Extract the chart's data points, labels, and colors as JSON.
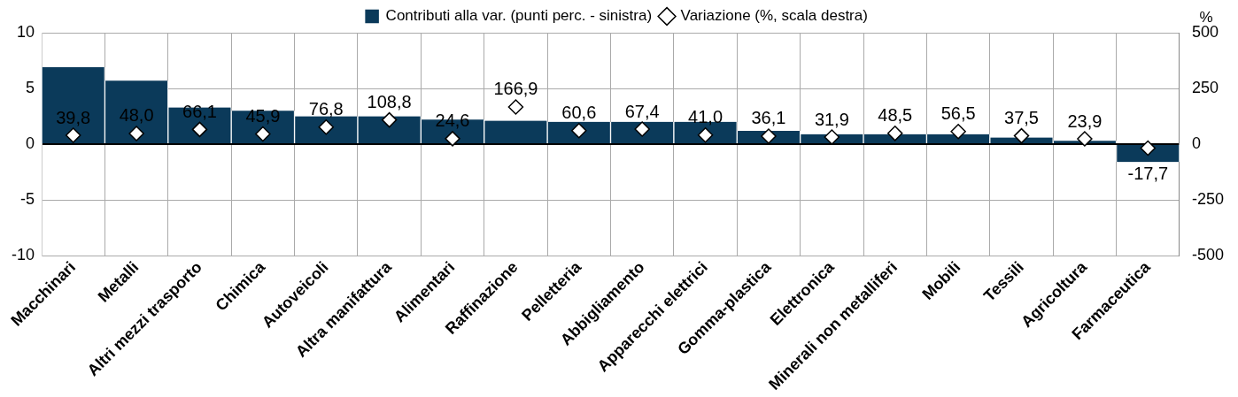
{
  "chart_data": {
    "type": "bar",
    "categories": [
      "Macchinari",
      "Metalli",
      "Altri mezzi trasporto",
      "Chimica",
      "Autoveicoli",
      "Altra manifattura",
      "Alimentari",
      "Raffinazione",
      "Pelletteria",
      "Abbigliamento",
      "Apparecchi elettrici",
      "Gomma-plastica",
      "Elettronica",
      "Minerali non metalliferi",
      "Mobili",
      "Tessili",
      "Agricoltura",
      "Farmaceutica"
    ],
    "series": [
      {
        "name": "Contributi alla var. (punti perc. - sinistra)",
        "color": "#0b3a5a",
        "values": [
          6.9,
          5.7,
          3.3,
          3.0,
          2.5,
          2.5,
          2.2,
          2.1,
          2.0,
          2.0,
          2.0,
          1.2,
          0.9,
          0.9,
          0.9,
          0.6,
          0.3,
          -1.6
        ]
      },
      {
        "name": "Variazione (%, scala destra)",
        "type": "scatter",
        "axis": "y2",
        "marker": "diamond",
        "color": "#ffffff",
        "values": [
          39.8,
          48.0,
          66.1,
          45.9,
          76.8,
          108.8,
          24.6,
          166.9,
          60.6,
          67.4,
          41.0,
          36.1,
          31.9,
          48.5,
          56.5,
          37.5,
          23.9,
          -17.7
        ],
        "value_labels": [
          "39,8",
          "48,0",
          "66,1",
          "45,9",
          "76,8",
          "108,8",
          "24,6",
          "166,9",
          "60,6",
          "67,4",
          "41,0",
          "36,1",
          "31,9",
          "48,5",
          "56,5",
          "37,5",
          "23,9",
          "-17,7"
        ]
      }
    ],
    "ylim": [
      -10,
      10
    ],
    "yticks": [
      -10,
      -5,
      0,
      5,
      10
    ],
    "y2lim": [
      -500,
      500
    ],
    "y2ticks": [
      -500,
      -250,
      0,
      250,
      500
    ],
    "y2label": "%",
    "grid": true,
    "legend": "top"
  }
}
